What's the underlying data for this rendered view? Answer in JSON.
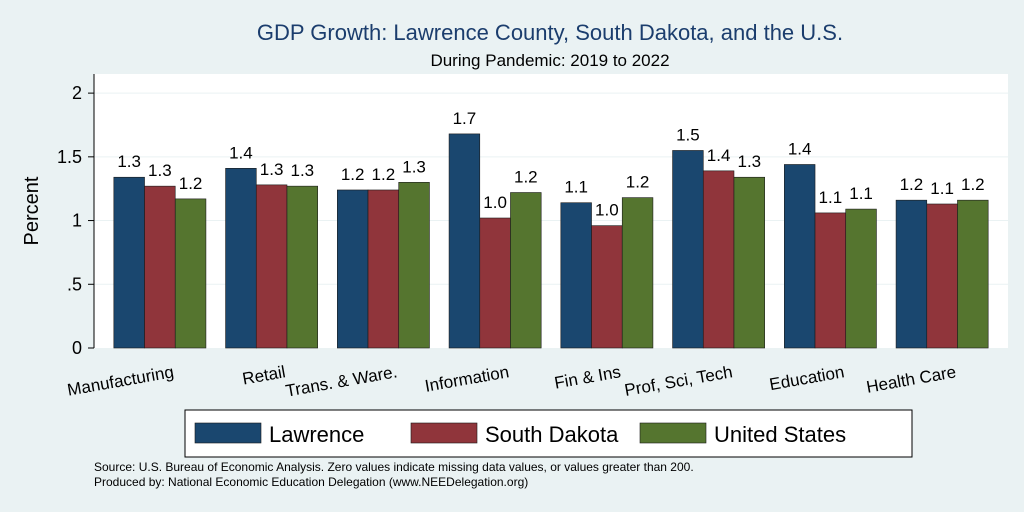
{
  "chart_data": {
    "type": "bar",
    "title": "GDP Growth: Lawrence County, South Dakota, and the U.S.",
    "subtitle": "During Pandemic: 2019 to 2022",
    "ylabel": "Percent",
    "xlabel": "",
    "ylim": [
      0,
      2.15
    ],
    "yticks": [
      0,
      0.5,
      1,
      1.5,
      2
    ],
    "ytick_labels": [
      "0",
      ".5",
      "1",
      "1.5",
      "2"
    ],
    "grid": true,
    "legend_position": "bottom",
    "categories": [
      "Manufacturing",
      "Retail",
      "Trans. & Ware.",
      "Information",
      "Fin & Ins",
      "Prof, Sci, Tech",
      "Education",
      "Health Care"
    ],
    "series": [
      {
        "name": "Lawrence",
        "color": "#1a476f",
        "values": [
          1.34,
          1.41,
          1.24,
          1.68,
          1.14,
          1.55,
          1.44,
          1.16
        ],
        "labels": [
          "1.3",
          "1.4",
          "1.2",
          "1.7",
          "1.1",
          "1.5",
          "1.4",
          "1.2"
        ]
      },
      {
        "name": "South Dakota",
        "color": "#90353b",
        "values": [
          1.27,
          1.28,
          1.24,
          1.02,
          0.96,
          1.39,
          1.06,
          1.13
        ],
        "labels": [
          "1.3",
          "1.3",
          "1.2",
          "1.0",
          "1.0",
          "1.4",
          "1.1",
          "1.1"
        ]
      },
      {
        "name": "United States",
        "color": "#55752f",
        "values": [
          1.17,
          1.27,
          1.3,
          1.22,
          1.18,
          1.34,
          1.09,
          1.16
        ],
        "labels": [
          "1.2",
          "1.3",
          "1.3",
          "1.2",
          "1.2",
          "1.3",
          "1.1",
          "1.2"
        ]
      }
    ]
  },
  "footer": {
    "source": "Source: U.S. Bureau of Economic Analysis. Zero values indicate missing data values, or values greater than 200.",
    "produced_by": "Produced by: National Economic Education Delegation (www.NEEDelegation.org)"
  }
}
